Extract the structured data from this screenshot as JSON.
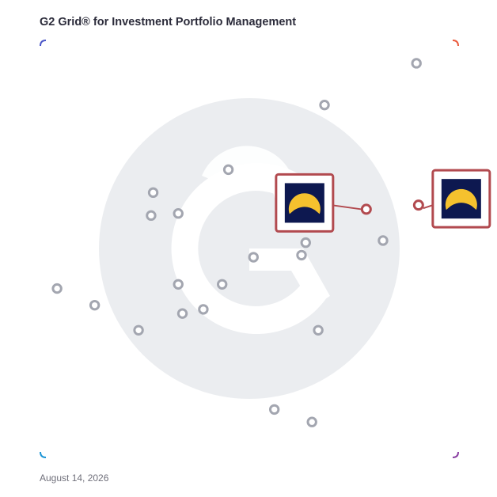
{
  "header": {
    "title": "G2 Grid® for Investment Portfolio Management"
  },
  "footer": {
    "date": "August 14, 2026"
  },
  "colors": {
    "frame_top_left": "#4b57c8",
    "frame_top_right": "#ea5a3c",
    "frame_bottom_left": "#1e96d6",
    "frame_bottom_right": "#8a3fa2",
    "marker_grey": "#a3a6b0",
    "highlight": "#b24a4f",
    "logo_bg": "#0d1850",
    "logo_sun": "#f5c12e",
    "watermark": "#ebedf0"
  },
  "icons": {
    "background": "g2-logo-watermark",
    "product": "product-logo-icon"
  },
  "chart_data": {
    "type": "scatter",
    "title": "G2 Grid® for Investment Portfolio Management",
    "xlim": [
      0,
      100
    ],
    "ylim": [
      0,
      100
    ],
    "quadrant_dividers": {
      "x": 50,
      "y": 50
    },
    "grid": true,
    "points": [
      {
        "x": 90,
        "y": 94.5
      },
      {
        "x": 68,
        "y": 84.5
      },
      {
        "x": 45,
        "y": 69
      },
      {
        "x": 27,
        "y": 63.5
      },
      {
        "x": 26.5,
        "y": 58
      },
      {
        "x": 33,
        "y": 58.5
      },
      {
        "x": 82,
        "y": 52
      },
      {
        "x": 63.5,
        "y": 51.5
      },
      {
        "x": 62.5,
        "y": 48.5
      },
      {
        "x": 51,
        "y": 48
      },
      {
        "x": 33,
        "y": 41.5
      },
      {
        "x": 43.5,
        "y": 41.5
      },
      {
        "x": 4,
        "y": 40.5
      },
      {
        "x": 13,
        "y": 36.5
      },
      {
        "x": 34,
        "y": 34.5
      },
      {
        "x": 39,
        "y": 35.5
      },
      {
        "x": 23.5,
        "y": 30.5
      },
      {
        "x": 66.5,
        "y": 30.5
      },
      {
        "x": 56,
        "y": 11.5
      },
      {
        "x": 65,
        "y": 8.5
      }
    ],
    "highlighted": [
      {
        "x": 78,
        "y": 59.5,
        "label_side": "left"
      },
      {
        "x": 90.5,
        "y": 60.5,
        "label_side": "right"
      }
    ]
  }
}
